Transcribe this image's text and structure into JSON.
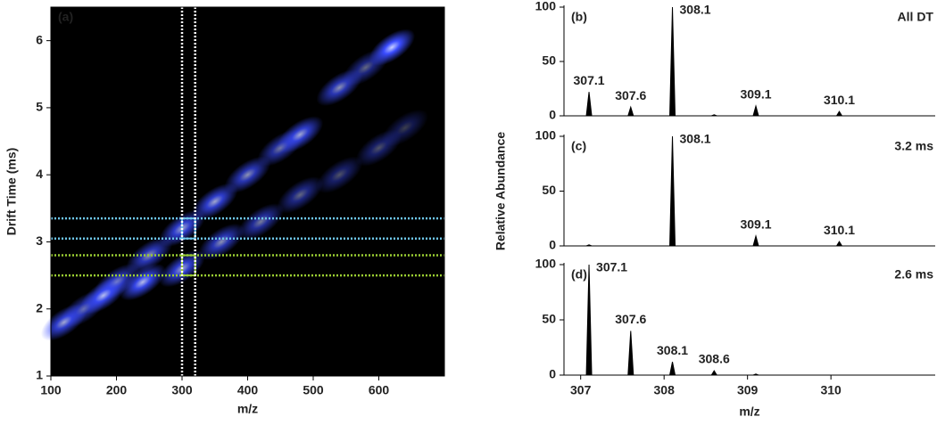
{
  "chart_data": [
    {
      "type": "heatmap",
      "label": "(a)",
      "xlabel": "m/z",
      "ylabel": "Drift Time (ms)",
      "xlim": [
        100,
        700
      ],
      "ylim": [
        1,
        6.5
      ],
      "xticks": [
        100,
        200,
        300,
        400,
        500,
        600
      ],
      "yticks": [
        1,
        2,
        3,
        4,
        5,
        6
      ],
      "color": "#3a4cff",
      "x": [
        150,
        200,
        250,
        300,
        350,
        400,
        450,
        480,
        540,
        580,
        620,
        120,
        180,
        240,
        300,
        360,
        420,
        480,
        540,
        600,
        640
      ],
      "y": [
        2.0,
        2.4,
        2.8,
        3.2,
        3.6,
        4.0,
        4.4,
        4.6,
        5.3,
        5.6,
        5.9,
        1.8,
        2.2,
        2.4,
        2.6,
        3.0,
        3.3,
        3.7,
        4.0,
        4.4,
        4.7
      ],
      "values": [
        0.6,
        0.7,
        0.7,
        0.8,
        0.8,
        0.7,
        0.6,
        0.8,
        0.7,
        0.5,
        1.0,
        0.8,
        0.9,
        0.9,
        0.8,
        0.7,
        0.6,
        0.5,
        0.4,
        0.4,
        0.3
      ],
      "vlines": {
        "values": [
          300,
          320
        ],
        "color": "#ffffff"
      },
      "hlines": [
        {
          "values": [
            3.05,
            3.35
          ],
          "color": "#6ec6ea"
        },
        {
          "values": [
            2.5,
            2.8
          ],
          "color": "#9acd32"
        }
      ]
    },
    {
      "type": "spectrum",
      "label": "(b)",
      "annotation": "All DT",
      "annotation_color": "#000000",
      "x": [
        307.1,
        307.6,
        308.1,
        308.6,
        309.1,
        310.1
      ],
      "values": [
        22,
        8,
        100,
        1,
        9,
        4
      ],
      "x_labels": [
        "307.1",
        "307.6",
        "308.1",
        null,
        "309.1",
        "310.1"
      ],
      "xlim": [
        306.8,
        311.25
      ],
      "ylim": [
        0,
        100
      ],
      "yticks": [
        0,
        50,
        100
      ],
      "color": "#000000"
    },
    {
      "type": "spectrum",
      "label": "(c)",
      "annotation": "3.2 ms",
      "annotation_color": "#29a3dc",
      "ylabel": "Relative Abundance",
      "x": [
        307.1,
        308.1,
        309.1,
        310.1
      ],
      "values": [
        1,
        100,
        9,
        4
      ],
      "x_labels": [
        null,
        "308.1",
        "309.1",
        "310.1"
      ],
      "xlim": [
        306.8,
        311.25
      ],
      "ylim": [
        0,
        100
      ],
      "yticks": [
        0,
        50,
        100
      ],
      "color": "#000000"
    },
    {
      "type": "spectrum",
      "label": "(d)",
      "annotation": "2.6 ms",
      "annotation_color": "#8dc63f",
      "xlabel": "m/z",
      "x": [
        307.1,
        307.6,
        308.1,
        308.6,
        309.1
      ],
      "values": [
        100,
        40,
        12,
        4,
        1
      ],
      "x_labels": [
        "307.1",
        "307.6",
        "308.1",
        "308.6",
        null
      ],
      "xlim": [
        306.8,
        311.25
      ],
      "ylim": [
        0,
        100
      ],
      "yticks": [
        0,
        50,
        100
      ],
      "xticks": [
        307,
        308,
        309,
        310
      ],
      "color": "#000000"
    }
  ]
}
